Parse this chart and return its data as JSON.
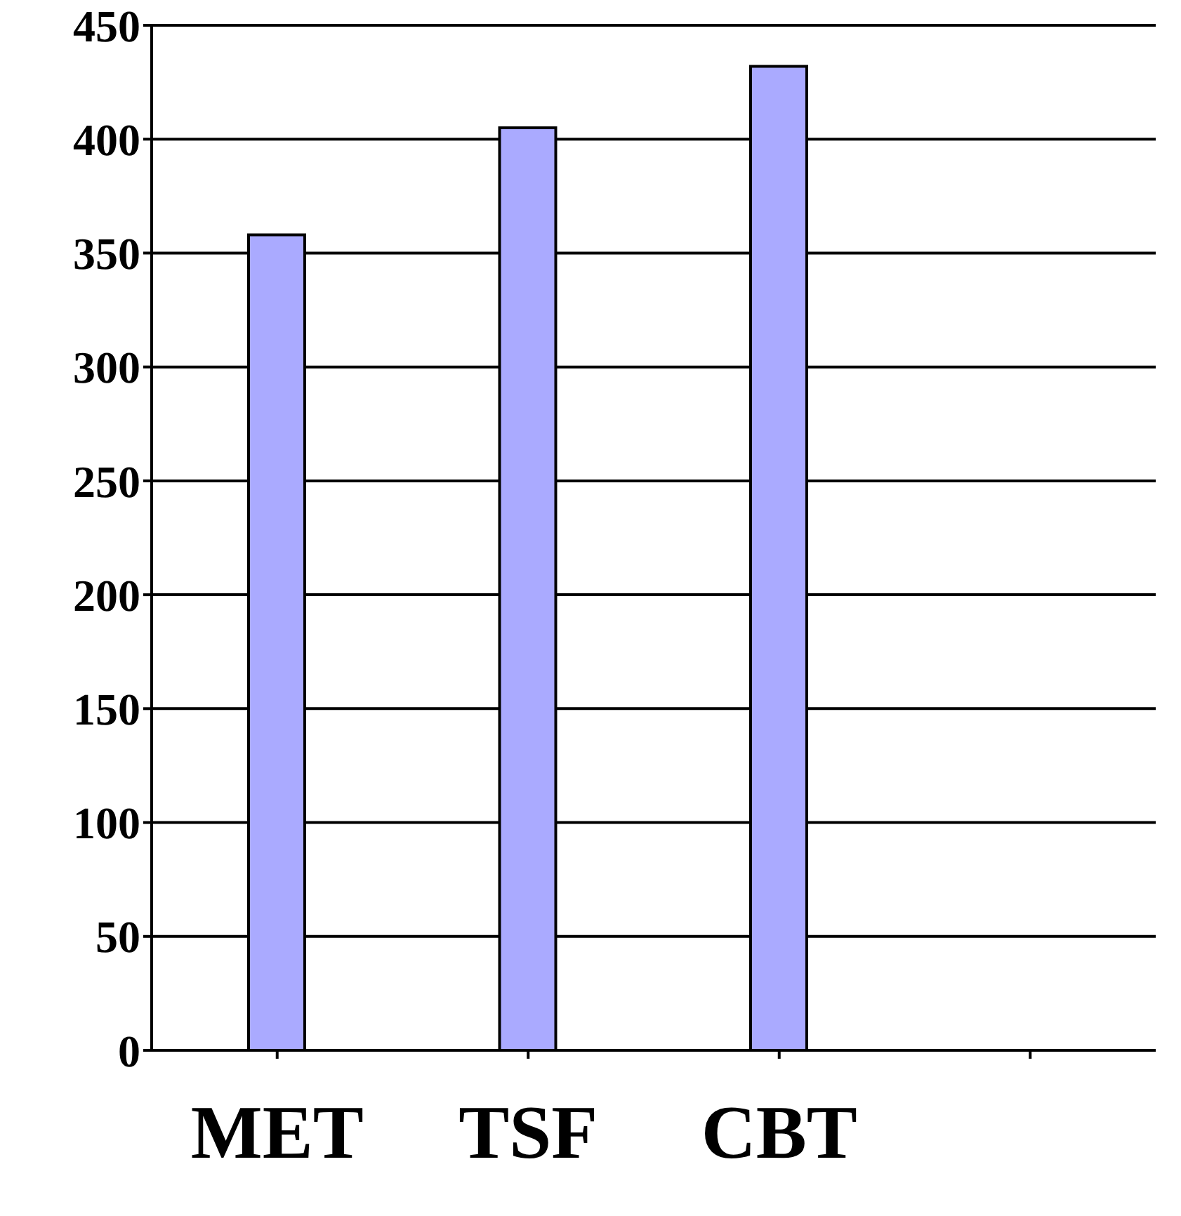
{
  "chart_data": {
    "type": "bar",
    "categories": [
      "MET",
      "TSF",
      "CBT",
      null
    ],
    "values": [
      358,
      405,
      432,
      null
    ],
    "color": "#aaaaff",
    "ylim": [
      0,
      450
    ],
    "yticks": [
      0,
      50,
      100,
      150,
      200,
      250,
      300,
      350,
      400,
      450
    ],
    "grid": "y"
  }
}
